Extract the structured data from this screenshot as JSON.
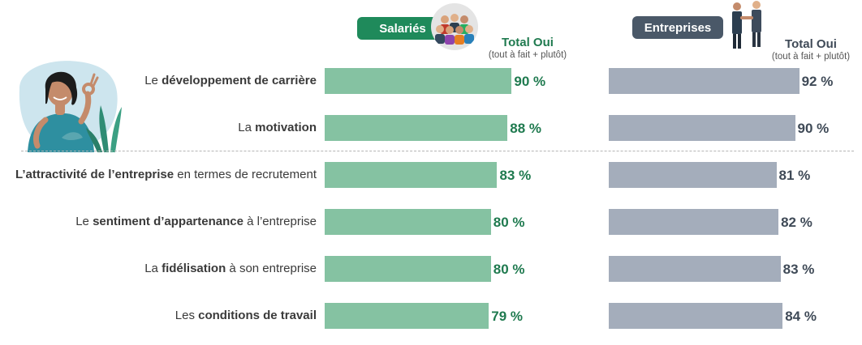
{
  "header": {
    "salaries_label": "Salariés",
    "entreprises_label": "Entreprises",
    "total_title": "Total Oui",
    "total_subtitle": "(tout à fait + plutôt)"
  },
  "colors": {
    "salaries_bar": "#85c2a2",
    "salaries_text": "#1f7a4f",
    "salaries_pill": "#1f8a5b",
    "entreprises_bar": "#a4adbb",
    "entreprises_text": "#3f4a57",
    "entreprises_pill": "#4a5868"
  },
  "chart_data": {
    "type": "bar",
    "orientation": "horizontal",
    "xlim": [
      0,
      100
    ],
    "categories": [
      {
        "prefix": "Le ",
        "bold": "développement de carrière",
        "suffix": ""
      },
      {
        "prefix": "La ",
        "bold": "motivation",
        "suffix": ""
      },
      {
        "prefix": "",
        "bold": "L’attractivité de l’entreprise",
        "suffix": " en termes de recrutement"
      },
      {
        "prefix": "Le ",
        "bold": "sentiment d’appartenance",
        "suffix": " à l’entreprise"
      },
      {
        "prefix": "La ",
        "bold": "fidélisation",
        "suffix": " à son entreprise"
      },
      {
        "prefix": "Les ",
        "bold": "conditions de travail",
        "suffix": ""
      }
    ],
    "series": [
      {
        "name": "Salariés",
        "values": [
          90,
          88,
          83,
          80,
          80,
          79
        ],
        "labels": [
          "90 %",
          "88 %",
          "83 %",
          "80 %",
          "80 %",
          "79 %"
        ]
      },
      {
        "name": "Entreprises",
        "values": [
          92,
          90,
          81,
          82,
          83,
          84
        ],
        "labels": [
          "92 %",
          "90 %",
          "81 %",
          "82 %",
          "83 %",
          "84 %"
        ]
      }
    ]
  }
}
